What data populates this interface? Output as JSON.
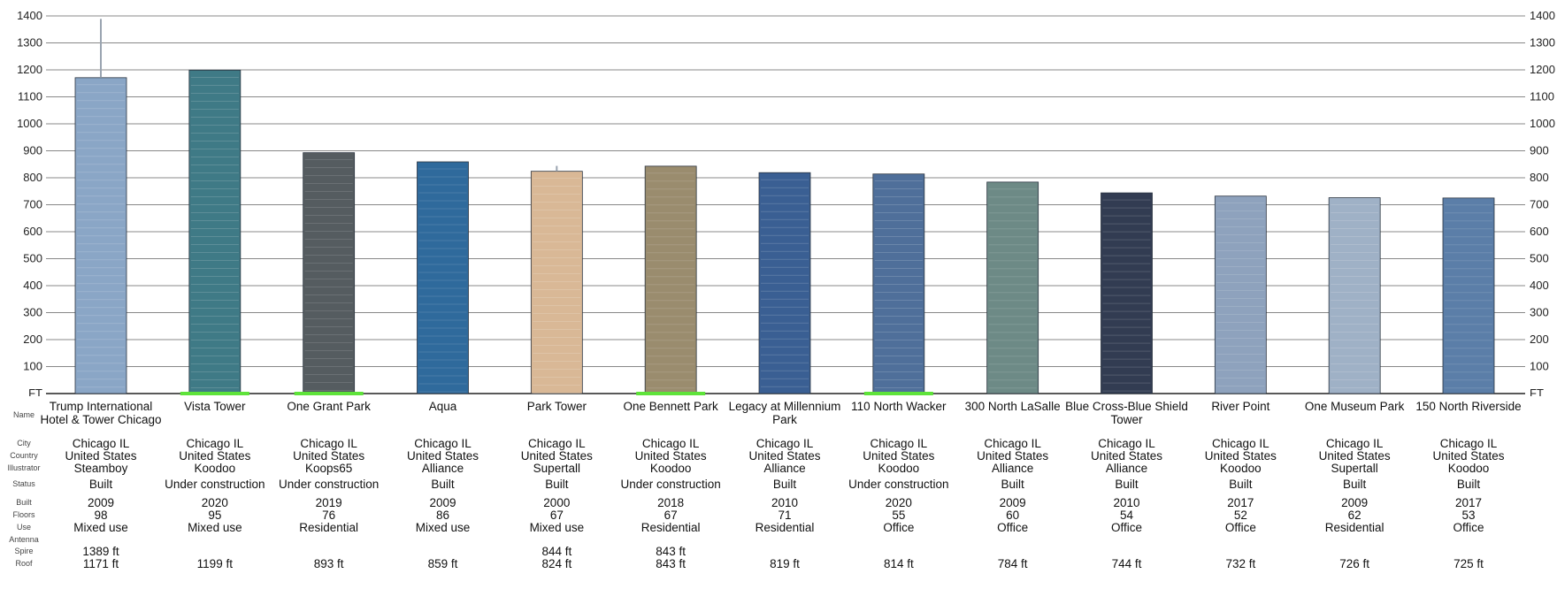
{
  "chart_data": {
    "type": "bar",
    "unit_label": "FT",
    "ylim": [
      0,
      1400
    ],
    "y_ticks": [
      "100",
      "200",
      "300",
      "400",
      "500",
      "600",
      "700",
      "800",
      "900",
      "1000",
      "1100",
      "1200",
      "1300",
      "1400"
    ],
    "grid": true,
    "colors": {
      "grid": "#888888",
      "under_construction": "#5ee33a",
      "ground": "#222222"
    },
    "row_labels": {
      "name": "Name",
      "city": "City",
      "country": "Country",
      "illustrator": "Illustrator",
      "status": "Status",
      "built": "Built",
      "floors": "Floors",
      "use": "Use",
      "antenna": "Antenna",
      "spire": "Spire",
      "roof": "Roof"
    },
    "buildings": [
      {
        "name": "Trump International Hotel & Tower Chicago",
        "city": "Chicago IL",
        "country": "United States",
        "illustrator": "Steamboy",
        "status": "Built",
        "built": "2009",
        "floors": "98",
        "use": "Mixed use",
        "antenna": "",
        "spire": "1389 ft",
        "roof": "1171 ft",
        "roof_ft": 1171,
        "spire_ft": 1389,
        "color": "#8aa6c6"
      },
      {
        "name": "Vista Tower",
        "city": "Chicago IL",
        "country": "United States",
        "illustrator": "Koodoo",
        "status": "Under construction",
        "built": "2020",
        "floors": "95",
        "use": "Mixed use",
        "antenna": "",
        "spire": "",
        "roof": "1199 ft",
        "roof_ft": 1199,
        "spire_ft": null,
        "color": "#3f7a86"
      },
      {
        "name": "One Grant Park",
        "city": "Chicago IL",
        "country": "United States",
        "illustrator": "Koops65",
        "status": "Under construction",
        "built": "2019",
        "floors": "76",
        "use": "Residential",
        "antenna": "",
        "spire": "",
        "roof": "893 ft",
        "roof_ft": 893,
        "spire_ft": null,
        "color": "#555c60"
      },
      {
        "name": "Aqua",
        "city": "Chicago IL",
        "country": "United States",
        "illustrator": "Alliance",
        "status": "Built",
        "built": "2009",
        "floors": "86",
        "use": "Mixed use",
        "antenna": "",
        "spire": "",
        "roof": "859 ft",
        "roof_ft": 859,
        "spire_ft": null,
        "color": "#2f6a9c"
      },
      {
        "name": "Park Tower",
        "city": "Chicago IL",
        "country": "United States",
        "illustrator": "Supertall",
        "status": "Built",
        "built": "2000",
        "floors": "67",
        "use": "Mixed use",
        "antenna": "",
        "spire": "844 ft",
        "roof": "824 ft",
        "roof_ft": 824,
        "spire_ft": 844,
        "color": "#d9b896"
      },
      {
        "name": "One Bennett Park",
        "city": "Chicago IL",
        "country": "United States",
        "illustrator": "Koodoo",
        "status": "Under construction",
        "built": "2018",
        "floors": "67",
        "use": "Residential",
        "antenna": "",
        "spire": "843 ft",
        "roof": "843 ft",
        "roof_ft": 843,
        "spire_ft": 843,
        "color": "#9a8c6e"
      },
      {
        "name": "Legacy at Millennium Park",
        "city": "Chicago IL",
        "country": "United States",
        "illustrator": "Alliance",
        "status": "Built",
        "built": "2010",
        "floors": "71",
        "use": "Residential",
        "antenna": "",
        "spire": "",
        "roof": "819 ft",
        "roof_ft": 819,
        "spire_ft": null,
        "color": "#3a5f93"
      },
      {
        "name": "110 North Wacker",
        "city": "Chicago IL",
        "country": "United States",
        "illustrator": "Koodoo",
        "status": "Under construction",
        "built": "2020",
        "floors": "55",
        "use": "Office",
        "antenna": "",
        "spire": "",
        "roof": "814 ft",
        "roof_ft": 814,
        "spire_ft": null,
        "color": "#4f6f9a"
      },
      {
        "name": "300 North LaSalle",
        "city": "Chicago IL",
        "country": "United States",
        "illustrator": "Alliance",
        "status": "Built",
        "built": "2009",
        "floors": "60",
        "use": "Office",
        "antenna": "",
        "spire": "",
        "roof": "784 ft",
        "roof_ft": 784,
        "spire_ft": null,
        "color": "#6d8a86"
      },
      {
        "name": "Blue Cross-Blue Shield Tower",
        "city": "Chicago IL",
        "country": "United States",
        "illustrator": "Alliance",
        "status": "Built",
        "built": "2010",
        "floors": "54",
        "use": "Office",
        "antenna": "",
        "spire": "",
        "roof": "744 ft",
        "roof_ft": 744,
        "spire_ft": null,
        "color": "#323c52"
      },
      {
        "name": "River Point",
        "city": "Chicago IL",
        "country": "United States",
        "illustrator": "Koodoo",
        "status": "Built",
        "built": "2017",
        "floors": "52",
        "use": "Office",
        "antenna": "",
        "spire": "",
        "roof": "732 ft",
        "roof_ft": 732,
        "spire_ft": null,
        "color": "#8ea2bd"
      },
      {
        "name": "One Museum Park",
        "city": "Chicago IL",
        "country": "United States",
        "illustrator": "Supertall",
        "status": "Built",
        "built": "2009",
        "floors": "62",
        "use": "Residential",
        "antenna": "",
        "spire": "",
        "roof": "726 ft",
        "roof_ft": 726,
        "spire_ft": null,
        "color": "#9fb1c6"
      },
      {
        "name": "150 North Riverside",
        "city": "Chicago IL",
        "country": "United States",
        "illustrator": "Koodoo",
        "status": "Built",
        "built": "2017",
        "floors": "53",
        "use": "Office",
        "antenna": "",
        "spire": "",
        "roof": "725 ft",
        "roof_ft": 725,
        "spire_ft": null,
        "color": "#5b7ea8"
      }
    ]
  }
}
